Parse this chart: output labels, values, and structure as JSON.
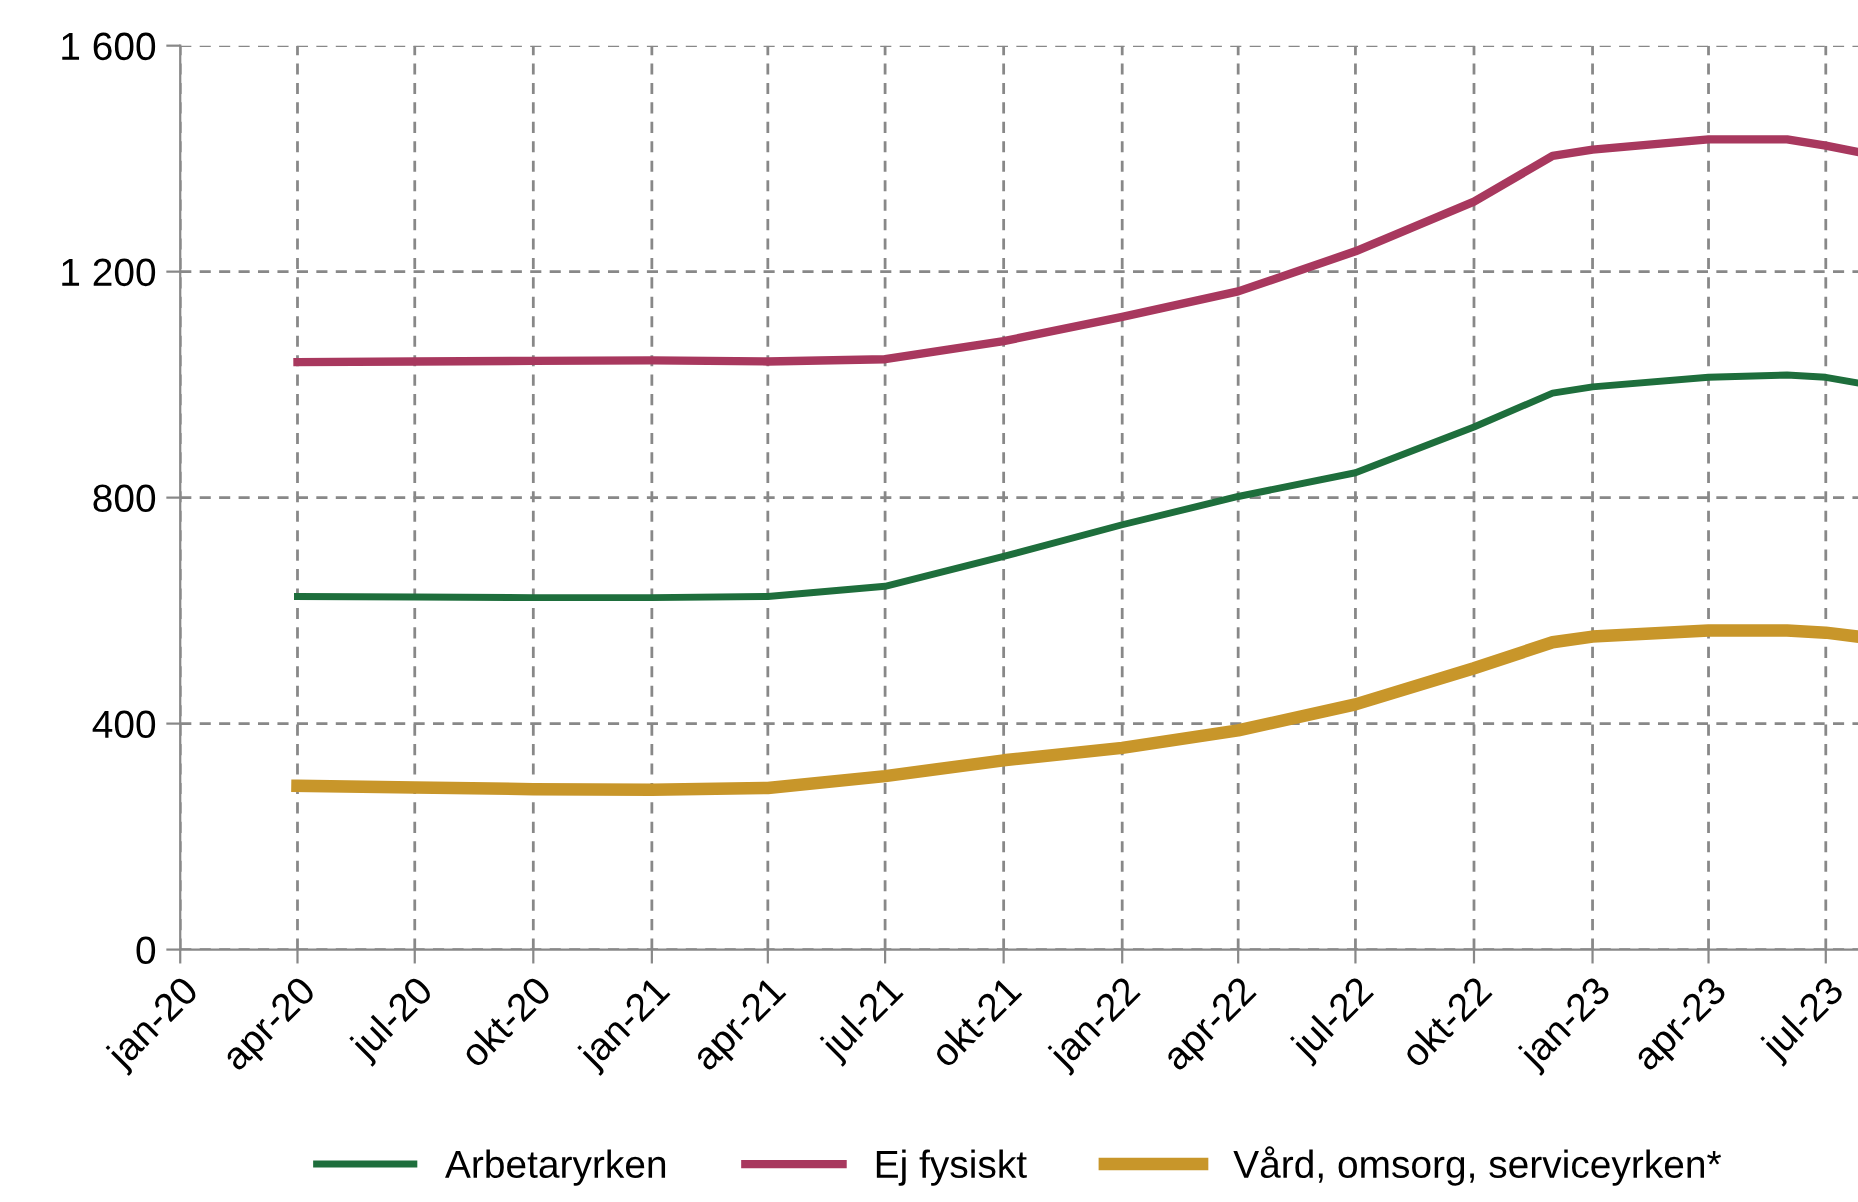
{
  "chart_data": {
    "type": "line",
    "xlim": [
      "2020-01",
      "2023-07-26"
    ],
    "ylim": [
      0,
      1600
    ],
    "yticks": [
      0,
      {
        "value": 400,
        "label": "400"
      },
      {
        "value": 800,
        "label": "800"
      },
      {
        "value": 1200,
        "label": "1 200"
      },
      {
        "value": 1600,
        "label": "1 600"
      }
    ],
    "xticks": [
      {
        "value": "2020-01",
        "label": "jan-20"
      },
      {
        "value": "2020-04",
        "label": "apr-20"
      },
      {
        "value": "2020-07",
        "label": "jul-20"
      },
      {
        "value": "2020-10",
        "label": "okt-20"
      },
      {
        "value": "2021-01",
        "label": "jan-21"
      },
      {
        "value": "2021-04",
        "label": "apr-21"
      },
      {
        "value": "2021-07",
        "label": "jul-21"
      },
      {
        "value": "2021-10",
        "label": "okt-21"
      },
      {
        "value": "2022-01",
        "label": "jan-22"
      },
      {
        "value": "2022-04",
        "label": "apr-22"
      },
      {
        "value": "2022-07",
        "label": "jul-22"
      },
      {
        "value": "2022-10",
        "label": "okt-22"
      },
      {
        "value": "2023-01",
        "label": "jan-23"
      },
      {
        "value": "2023-04",
        "label": "apr-23"
      },
      {
        "value": "2023-07",
        "label": "jul-23"
      }
    ],
    "x": [
      "2020-04",
      "2020-07",
      "2020-10",
      "2021-01",
      "2021-04",
      "2021-07",
      "2021-10",
      "2022-01",
      "2022-04",
      "2022-07",
      "2022-10",
      "2022-12",
      "2023-01",
      "2023-04",
      "2023-06",
      "2023-07",
      "2023-07-26"
    ],
    "grid": true,
    "legend": "bottom",
    "line_style": "solid",
    "marker": "none",
    "series": [
      {
        "name": "Arbetaryrken",
        "color": "#1e6e3c",
        "values": [
          625,
          624,
          623,
          623,
          625,
          643,
          696,
          752,
          802,
          844,
          925,
          985,
          996,
          1013,
          1017,
          1013,
          1003
        ]
      },
      {
        "name": "Ej fysiskt",
        "color": "#a8385e",
        "values": [
          1040,
          1041,
          1042,
          1043,
          1041,
          1045,
          1077,
          1120,
          1165,
          1236,
          1324,
          1405,
          1416,
          1434,
          1434,
          1423,
          1412
        ]
      },
      {
        "name": "Vård, omsorg, serviceyrken*",
        "color": "#c8962a",
        "values": [
          290,
          287,
          284,
          283,
          286,
          307,
          335,
          357,
          388,
          434,
          498,
          544,
          554,
          565,
          565,
          561,
          554
        ]
      }
    ]
  }
}
